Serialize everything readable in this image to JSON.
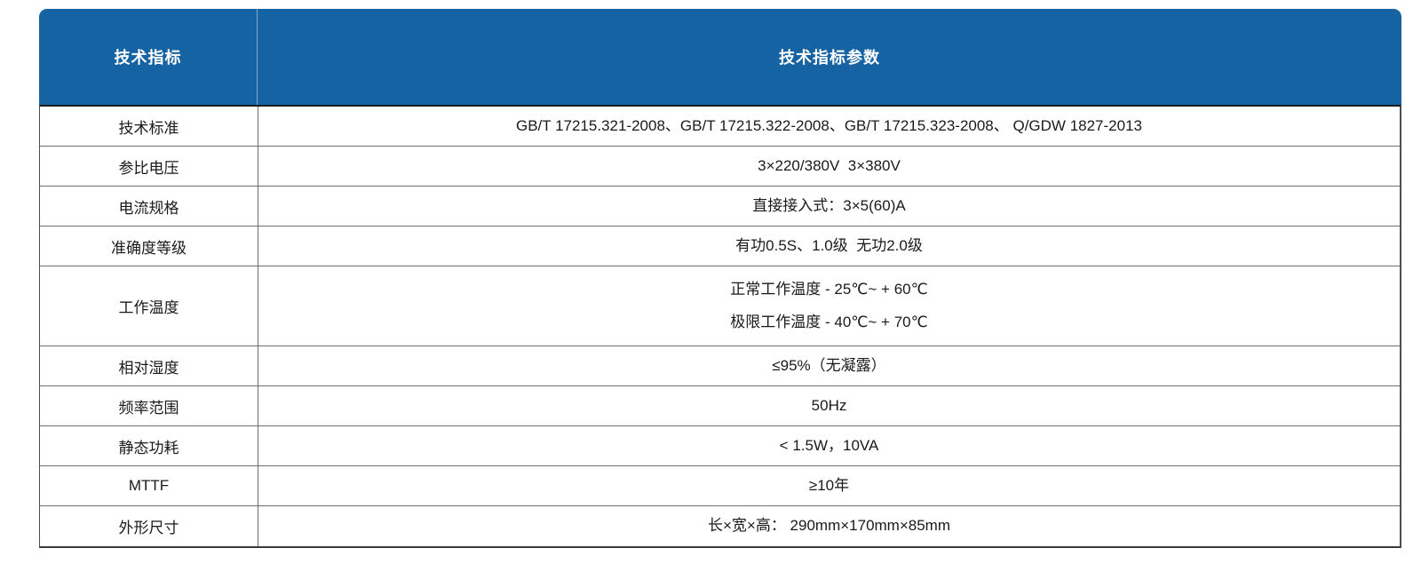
{
  "table": {
    "header": {
      "col1": "技术指标",
      "col2": "技术指标参数"
    },
    "rows": [
      {
        "label": "技术标准",
        "value": "GB/T 17215.321-2008、GB/T 17215.322-2008、GB/T 17215.323-2008、 Q/GDW 1827-2013"
      },
      {
        "label": "参比电压",
        "value": "3×220/380V  3×380V"
      },
      {
        "label": "电流规格",
        "value": "直接接入式：3×5(60)A"
      },
      {
        "label": "准确度等级",
        "value": "有功0.5S、1.0级  无功2.0级"
      },
      {
        "label": "工作温度",
        "value": "正常工作温度 - 25℃~ + 60℃",
        "value2": "极限工作温度 - 40℃~ + 70℃"
      },
      {
        "label": "相对湿度",
        "value": "≤95%（无凝露）"
      },
      {
        "label": "频率范围",
        "value": "50Hz"
      },
      {
        "label": "静态功耗",
        "value": "< 1.5W，10VA"
      },
      {
        "label": "MTTF",
        "value": "≥10年"
      },
      {
        "label": "外形尺寸",
        "value": "长×宽×高： 290mm×170mm×85mm"
      }
    ],
    "colors": {
      "header_bg": "#1563a2",
      "header_text": "#ffffff",
      "body_text": "#1a1a1a",
      "border": "#6e6e6e"
    }
  }
}
